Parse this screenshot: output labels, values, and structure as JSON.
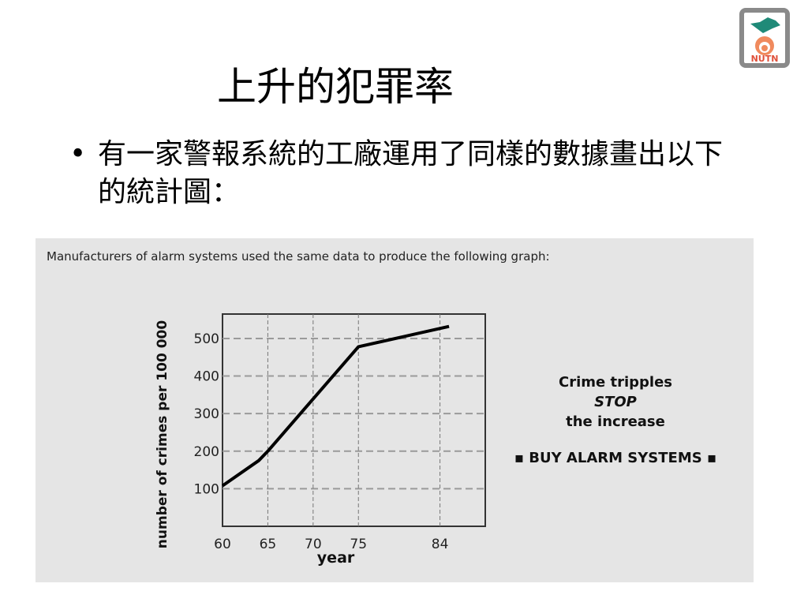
{
  "slide": {
    "title": "上升的犯罪率",
    "bullet": "有一家警報系統的工廠運用了同樣的數據畫出以下的統計圖：",
    "logo_text": "NUTN"
  },
  "panel": {
    "caption": "Manufacturers of alarm systems used the same data to produce the following graph:",
    "annotation": {
      "line1": "Crime tripples",
      "line2": "STOP",
      "line3": "the increase",
      "slogan": "▪ BUY ALARM SYSTEMS ▪"
    }
  },
  "chart_data": {
    "type": "line",
    "xlabel": "year",
    "ylabel": "number of crimes per 100 000",
    "xticks": [
      60,
      65,
      70,
      75,
      84
    ],
    "yticks": [
      100,
      200,
      300,
      400,
      500
    ],
    "xlim": [
      60,
      89
    ],
    "ylim": [
      0,
      565
    ],
    "grid": true,
    "x": [
      60,
      64,
      65,
      75,
      85
    ],
    "y": [
      108,
      175,
      200,
      478,
      532
    ],
    "colors": {
      "line": "#000000",
      "grid": "#9a9a9a",
      "background": "#e5e5e5"
    }
  }
}
